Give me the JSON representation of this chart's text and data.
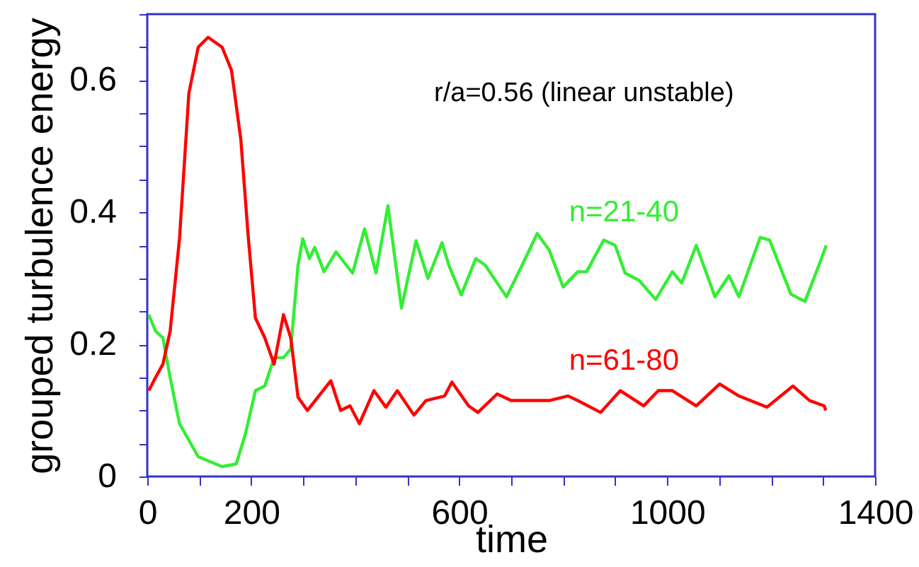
{
  "chart_data": {
    "type": "line",
    "xlabel": "time",
    "ylabel": "grouped turbulence energy",
    "annotations": [
      "r/a=0.56 (linear unstable)"
    ],
    "xlim": [
      0,
      1400
    ],
    "ylim": [
      0,
      0.7
    ],
    "xticks": [
      0,
      {
        "value": 100,
        "label": null
      },
      200,
      {
        "value": 300,
        "label": null
      },
      {
        "value": 400,
        "label": null
      },
      {
        "value": 500,
        "label": null
      },
      600,
      {
        "value": 700,
        "label": null
      },
      {
        "value": 800,
        "label": null
      },
      {
        "value": 900,
        "label": null
      },
      1000,
      {
        "value": 1100,
        "label": null
      },
      {
        "value": 1200,
        "label": null
      },
      {
        "value": 1300,
        "label": null
      },
      1400
    ],
    "yticks": [
      0,
      {
        "value": 0.05,
        "label": null
      },
      {
        "value": 0.1,
        "label": null
      },
      {
        "value": 0.15,
        "label": null
      },
      0.2,
      {
        "value": 0.25,
        "label": null
      },
      {
        "value": 0.3,
        "label": null
      },
      {
        "value": 0.35,
        "label": null
      },
      0.4,
      {
        "value": 0.45,
        "label": null
      },
      {
        "value": 0.5,
        "label": null
      },
      {
        "value": 0.55,
        "label": null
      },
      0.6,
      {
        "value": 0.65,
        "label": null
      },
      {
        "value": 0.7,
        "label": null
      }
    ],
    "grid": false,
    "marker": "none",
    "line_style": "solid",
    "series": [
      {
        "name": "n=21-40",
        "color": "#33ee33",
        "x": [
          3,
          16,
          30,
          44,
          62,
          98,
          144,
          171,
          189,
          208,
          226,
          244,
          262,
          276,
          290,
          299,
          312,
          322,
          340,
          363,
          395,
          418,
          440,
          463,
          489,
          517,
          540,
          567,
          580,
          604,
          632,
          650,
          691,
          718,
          750,
          773,
          800,
          828,
          845,
          878,
          900,
          919,
          946,
          978,
          1010,
          1028,
          1056,
          1092,
          1119,
          1138,
          1179,
          1197,
          1238,
          1265,
          1292,
          1306
        ],
        "values": [
          0.245,
          0.22,
          0.21,
          0.15,
          0.08,
          0.03,
          0.015,
          0.019,
          0.065,
          0.13,
          0.137,
          0.18,
          0.18,
          0.193,
          0.32,
          0.36,
          0.33,
          0.347,
          0.31,
          0.34,
          0.308,
          0.375,
          0.308,
          0.41,
          0.255,
          0.357,
          0.3,
          0.354,
          0.32,
          0.275,
          0.33,
          0.32,
          0.272,
          0.315,
          0.368,
          0.343,
          0.287,
          0.31,
          0.31,
          0.358,
          0.35,
          0.308,
          0.297,
          0.268,
          0.31,
          0.293,
          0.35,
          0.272,
          0.304,
          0.272,
          0.362,
          0.358,
          0.276,
          0.265,
          0.32,
          0.35
        ]
      },
      {
        "name": "n=61-80",
        "color": "#ff0000",
        "x": [
          3,
          16,
          30,
          44,
          62,
          80,
          98,
          117,
          144,
          162,
          180,
          194,
          208,
          226,
          244,
          262,
          276,
          290,
          308,
          353,
          372,
          390,
          408,
          436,
          459,
          481,
          513,
          536,
          572,
          586,
          618,
          636,
          673,
          700,
          773,
          809,
          828,
          872,
          910,
          955,
          983,
          1010,
          1056,
          1101,
          1138,
          1192,
          1242,
          1274,
          1302,
          1305
        ],
        "values": [
          0.13,
          0.15,
          0.17,
          0.22,
          0.36,
          0.58,
          0.65,
          0.665,
          0.65,
          0.615,
          0.51,
          0.365,
          0.24,
          0.21,
          0.17,
          0.245,
          0.21,
          0.12,
          0.1,
          0.145,
          0.1,
          0.107,
          0.08,
          0.13,
          0.105,
          0.13,
          0.093,
          0.115,
          0.122,
          0.143,
          0.107,
          0.097,
          0.125,
          0.115,
          0.115,
          0.122,
          0.115,
          0.097,
          0.13,
          0.107,
          0.13,
          0.13,
          0.107,
          0.14,
          0.122,
          0.105,
          0.137,
          0.115,
          0.107,
          0.1
        ]
      }
    ]
  }
}
